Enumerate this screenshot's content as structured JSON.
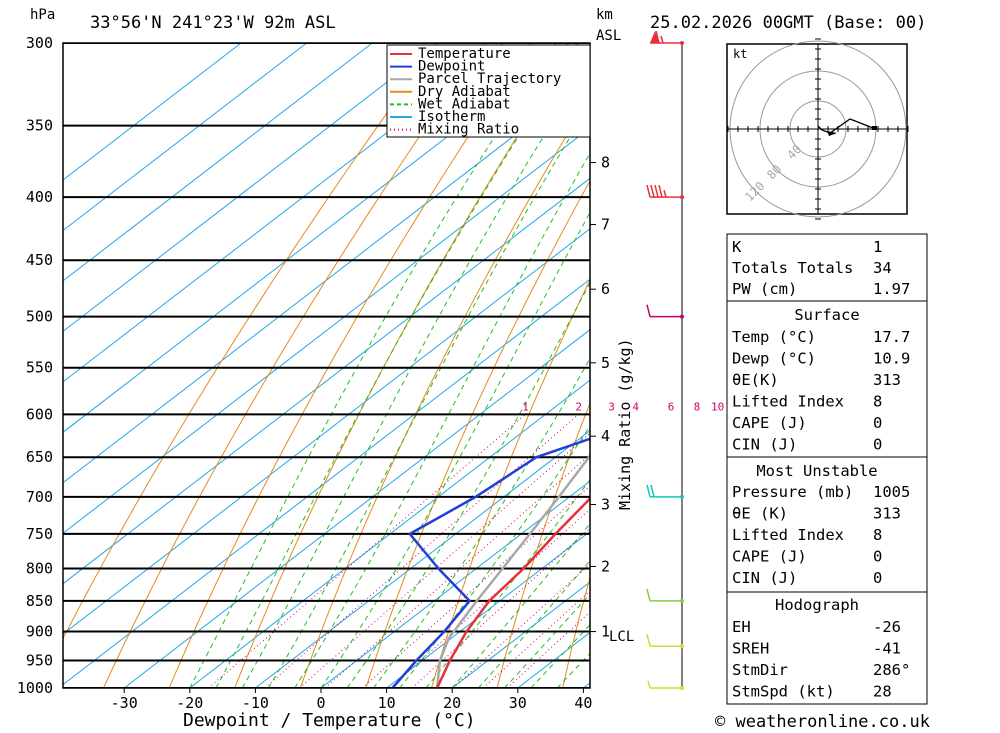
{
  "header": {
    "location": "33°56'N  241°23'W  92m  ASL",
    "datetime": "25.02.2026  00GMT  (Base: 00)",
    "hpa_label": "hPa",
    "km_label": "km",
    "asl_label": "ASL"
  },
  "axes": {
    "xlabel": "Dewpoint / Temperature (°C)",
    "mixing_ratio_label": "Mixing Ratio (g/kg)",
    "lcl_label": "LCL",
    "x_ticks": [
      "-30",
      "-20",
      "-10",
      "0",
      "10",
      "20",
      "30",
      "40"
    ],
    "x_tick_values": [
      -30,
      -20,
      -10,
      0,
      10,
      20,
      30,
      40
    ],
    "p_levels": [
      300,
      350,
      400,
      450,
      500,
      550,
      600,
      650,
      700,
      750,
      800,
      850,
      900,
      950,
      1000
    ],
    "p_labels": [
      "300",
      "350",
      "400",
      "450",
      "500",
      "550",
      "600",
      "650",
      "700",
      "750",
      "800",
      "850",
      "900",
      "950",
      "1000"
    ],
    "km_ticks": [
      {
        "label": "8",
        "p": 375
      },
      {
        "label": "7",
        "p": 421
      },
      {
        "label": "6",
        "p": 475
      },
      {
        "label": "5",
        "p": 545
      },
      {
        "label": "4",
        "p": 625
      },
      {
        "label": "3",
        "p": 710
      },
      {
        "label": "2",
        "p": 797
      },
      {
        "label": "1",
        "p": 900
      }
    ],
    "mixing_ratio_values": [
      "1",
      "2",
      "3",
      "4",
      "6",
      "8",
      "10",
      "15",
      "20",
      "25"
    ]
  },
  "chart_data": {
    "type": "line",
    "title": "Skew-T log-P sounding",
    "xlabel": "Dewpoint / Temperature (°C)",
    "ylabel": "hPa",
    "xlim": [
      -40,
      40
    ],
    "ylim": [
      1000,
      300
    ],
    "series": [
      {
        "name": "Temperature",
        "color": "#e8303a",
        "points": [
          [
            1000,
            17.7
          ],
          [
            950,
            14.2
          ],
          [
            900,
            11.0
          ],
          [
            850,
            8.4
          ],
          [
            800,
            7.2
          ],
          [
            750,
            5.2
          ],
          [
            700,
            3.4
          ],
          [
            650,
            1.4
          ],
          [
            600,
            -1.2
          ],
          [
            550,
            -3.0
          ],
          [
            500,
            -6.4
          ],
          [
            450,
            -10.6
          ],
          [
            400,
            -17.5
          ],
          [
            350,
            -25.5
          ],
          [
            300,
            -34.5
          ]
        ]
      },
      {
        "name": "Dewpoint",
        "color": "#2040d8",
        "points": [
          [
            1000,
            10.9
          ],
          [
            950,
            9.1
          ],
          [
            900,
            7.6
          ],
          [
            850,
            5.4
          ],
          [
            800,
            -5.8
          ],
          [
            750,
            -17.0
          ],
          [
            700,
            -14.3
          ],
          [
            650,
            -12.9
          ],
          [
            600,
            -2.3
          ],
          [
            550,
            -3.4
          ],
          [
            500,
            -7.9
          ],
          [
            450,
            -19.4
          ],
          [
            400,
            -19.7
          ],
          [
            350,
            -24.8
          ],
          [
            300,
            -36.5
          ]
        ]
      },
      {
        "name": "Parcel Trajectory",
        "color": "#a8a8a8",
        "points": [
          [
            1000,
            17.7
          ],
          [
            950,
            12.7
          ],
          [
            911,
            9.6
          ],
          [
            850,
            6.5
          ],
          [
            800,
            4.0
          ],
          [
            750,
            1.3
          ],
          [
            700,
            -1.6
          ],
          [
            650,
            -4.9
          ],
          [
            600,
            -8.4
          ],
          [
            550,
            -12.3
          ],
          [
            500,
            -16.9
          ],
          [
            450,
            -22.3
          ],
          [
            400,
            -28.6
          ],
          [
            350,
            -36.0
          ],
          [
            310,
            -42.7
          ]
        ]
      }
    ],
    "legend": {
      "items": [
        {
          "label": "Temperature",
          "color": "#e8303a",
          "dash": ""
        },
        {
          "label": "Dewpoint",
          "color": "#2040d8",
          "dash": ""
        },
        {
          "label": "Parcel Trajectory",
          "color": "#a8a8a8",
          "dash": ""
        },
        {
          "label": "Dry Adiabat",
          "color": "#e88a1a",
          "dash": ""
        },
        {
          "label": "Wet Adiabat",
          "color": "#1fbf1f",
          "dash": "4,3"
        },
        {
          "label": "Isotherm",
          "color": "#22a8e8",
          "dash": ""
        },
        {
          "label": "Mixing Ratio",
          "color": "#d6006e",
          "dash": "1,3"
        }
      ],
      "placement": "top-right"
    },
    "wind_barbs": [
      {
        "p": 300,
        "color": "#e8303a",
        "speed_kt": 65
      },
      {
        "p": 400,
        "color": "#e8303a",
        "speed_kt": 45
      },
      {
        "p": 500,
        "color": "#c0006e",
        "speed_kt": 10
      },
      {
        "p": 700,
        "color": "#10c8b8",
        "speed_kt": 20
      },
      {
        "p": 850,
        "color": "#80d040",
        "speed_kt": 10
      },
      {
        "p": 925,
        "color": "#d8d830",
        "speed_kt": 10
      },
      {
        "p": 1000,
        "color": "#d8d830",
        "speed_kt": 5
      }
    ]
  },
  "hodograph": {
    "unit_label": "kt",
    "ring_labels": [
      "40",
      "80",
      "120"
    ]
  },
  "indices": {
    "k": {
      "label": "K",
      "value": "1"
    },
    "tt": {
      "label": "Totals Totals",
      "value": "34"
    },
    "pw": {
      "label": "PW (cm)",
      "value": "1.97"
    }
  },
  "surface": {
    "title": "Surface",
    "rows": [
      {
        "label": "Temp (°C)",
        "value": "17.7"
      },
      {
        "label": "Dewp (°C)",
        "value": "10.9"
      },
      {
        "label": "θE(K)",
        "value": "313"
      },
      {
        "label": "Lifted Index",
        "value": "8"
      },
      {
        "label": "CAPE (J)",
        "value": "0"
      },
      {
        "label": "CIN (J)",
        "value": "0"
      }
    ]
  },
  "most_unstable": {
    "title": "Most Unstable",
    "rows": [
      {
        "label": "Pressure (mb)",
        "value": "1005"
      },
      {
        "label": "θE (K)",
        "value": "313"
      },
      {
        "label": "Lifted Index",
        "value": "8"
      },
      {
        "label": "CAPE (J)",
        "value": "0"
      },
      {
        "label": "CIN (J)",
        "value": "0"
      }
    ]
  },
  "hodograph_table": {
    "title": "Hodograph",
    "rows": [
      {
        "label": "EH",
        "value": "-26"
      },
      {
        "label": "SREH",
        "value": "-41"
      },
      {
        "label": "StmDir",
        "value": "286°"
      },
      {
        "label": "StmSpd (kt)",
        "value": "28"
      }
    ]
  },
  "footer": {
    "copyright": "© weatheronline.co.uk"
  }
}
